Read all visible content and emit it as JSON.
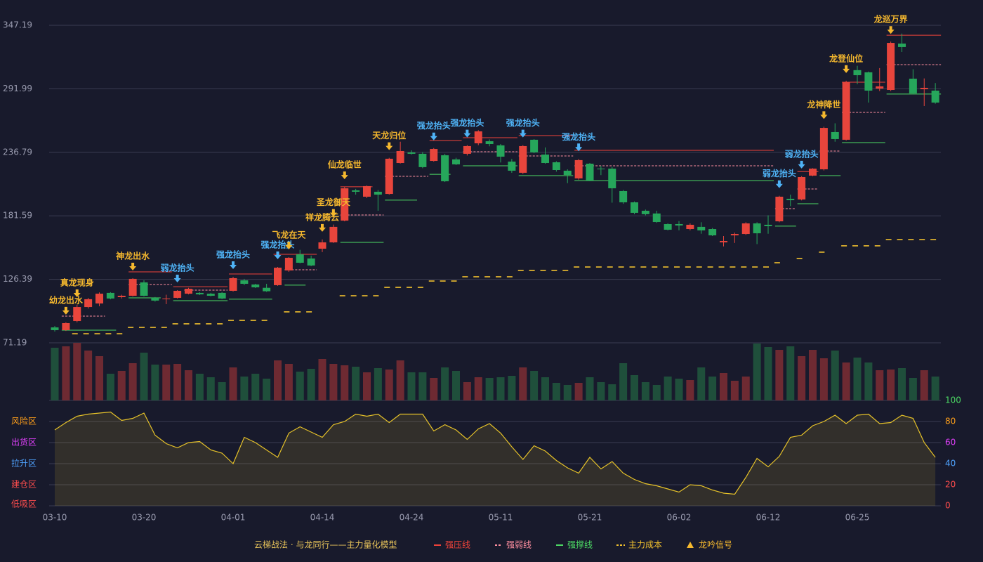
{
  "chart_data": {
    "type": "candlestick",
    "categories": [
      "03-10",
      null,
      null,
      null,
      null,
      null,
      null,
      null,
      "03-20",
      null,
      null,
      null,
      null,
      null,
      null,
      null,
      "04-01",
      null,
      null,
      null,
      null,
      null,
      null,
      null,
      "04-14",
      null,
      null,
      null,
      null,
      null,
      null,
      null,
      "04-24",
      null,
      null,
      null,
      null,
      null,
      null,
      null,
      "05-11",
      null,
      null,
      null,
      null,
      null,
      null,
      null,
      "05-21",
      null,
      null,
      null,
      null,
      null,
      null,
      null,
      "06-02",
      null,
      null,
      null,
      null,
      null,
      null,
      null,
      "06-12",
      null,
      null,
      null,
      null,
      null,
      null,
      null,
      "06-25",
      null,
      null,
      null,
      null,
      null,
      null,
      null
    ],
    "open": [
      84.6,
      82.2,
      90.1,
      102.3,
      105.4,
      114.6,
      110.9,
      112.1,
      123.7,
      110.3,
      109.1,
      110.3,
      113.9,
      114.6,
      113.9,
      114.6,
      116.4,
      125.5,
      121.9,
      119.0,
      121.3,
      134.1,
      148.1,
      144.5,
      153.0,
      158.5,
      177.4,
      203.7,
      198.2,
      202.5,
      200.6,
      227.5,
      236.7,
      235.5,
      229.3,
      234.2,
      230.6,
      235.5,
      244.6,
      246.4,
      242.8,
      228.7,
      219.0,
      247.7,
      234.8,
      228.1,
      220.8,
      214.1,
      226.9,
      222.6,
      222.6,
      203.1,
      193.3,
      186.0,
      183.6,
      174.4,
      174.4,
      170.1,
      172.0,
      170.1,
      158.5,
      164.6,
      165.8,
      175.0,
      173.8,
      176.8,
      196.4,
      195.8,
      216.5,
      222.0,
      254.4,
      247.7,
      308.2,
      306.3,
      292.2,
      291.0,
      331.3,
      300.8,
      291.6,
      290.4
    ],
    "high": [
      85.8,
      89.0,
      104.2,
      110.3,
      115.0,
      115.2,
      113.0,
      127.4,
      125.5,
      111.0,
      113.0,
      117.0,
      119.0,
      115.2,
      114.6,
      115.2,
      128.6,
      126.8,
      122.5,
      122.5,
      137.1,
      145.7,
      152.0,
      147.0,
      161.0,
      174.0,
      206.7,
      205.0,
      208.0,
      204.0,
      232.0,
      246.0,
      238.5,
      237.0,
      240.5,
      235.5,
      232.0,
      243.0,
      256.0,
      248.0,
      244.0,
      231.0,
      243.0,
      248.3,
      241.0,
      229.0,
      222.0,
      231.0,
      227.5,
      225.0,
      224.0,
      204.0,
      194.0,
      187.0,
      186.0,
      175.0,
      177.0,
      175.0,
      176.0,
      171.0,
      164.0,
      167.0,
      176.0,
      176.0,
      182.0,
      199.0,
      200.0,
      216.0,
      223.0,
      259.0,
      262.0,
      299.0,
      312.0,
      307.0,
      310.0,
      333.0,
      340.0,
      309.0,
      301.0,
      297.0
    ],
    "low": [
      81.0,
      81.5,
      89.0,
      101.0,
      103.0,
      109.0,
      109.7,
      111.5,
      111.5,
      107.0,
      104.8,
      109.7,
      113.3,
      112.7,
      111.5,
      109.1,
      115.8,
      121.3,
      118.8,
      115.5,
      120.7,
      132.9,
      140.2,
      137.8,
      150.0,
      158.0,
      176.8,
      200.0,
      197.0,
      186.0,
      200.0,
      227.0,
      234.8,
      223.0,
      228.7,
      211.0,
      225.7,
      234.0,
      243.0,
      242.0,
      228.0,
      219.0,
      218.0,
      236.0,
      226.9,
      220.0,
      210.0,
      213.0,
      211.6,
      217.0,
      193.0,
      192.0,
      183.0,
      182.0,
      175.5,
      168.9,
      169.0,
      168.9,
      166.0,
      164.0,
      155.0,
      158.0,
      165.0,
      157.0,
      166.0,
      176.0,
      190.0,
      195.0,
      216.0,
      221.0,
      246.0,
      247.0,
      296.0,
      280.0,
      290.0,
      290.0,
      324.0,
      287.0,
      277.0,
      279.0
    ],
    "close": [
      82.2,
      88.3,
      102.3,
      109.1,
      113.9,
      109.7,
      112.1,
      126.8,
      112.1,
      107.9,
      109.7,
      116.4,
      118.2,
      113.3,
      112.1,
      109.7,
      127.4,
      122.5,
      119.4,
      116.0,
      136.5,
      145.1,
      140.8,
      138.4,
      158.5,
      172.0,
      205.5,
      202.5,
      207.4,
      200.0,
      231.2,
      237.9,
      235.5,
      223.9,
      239.7,
      211.6,
      226.3,
      242.2,
      255.0,
      244.0,
      233.0,
      220.8,
      242.2,
      236.7,
      227.5,
      221.4,
      217.1,
      230.0,
      212.2,
      222.0,
      205.5,
      193.3,
      184.2,
      183.0,
      176.2,
      169.5,
      173.2,
      173.8,
      168.9,
      164.6,
      159.7,
      165.8,
      175.0,
      166.4,
      172.6,
      198.2,
      195.2,
      215.3,
      222.6,
      258.0,
      248.3,
      297.7,
      303.8,
      290.4,
      294.1,
      331.9,
      328.3,
      288.0,
      292.8,
      280.0
    ],
    "up_color": "#e8453c",
    "down_color": "#26a65b",
    "ylim": [
      71.19,
      347.19
    ],
    "yticks": [
      71.19,
      126.39,
      181.59,
      236.79,
      291.99,
      347.19
    ],
    "grid": true,
    "cost": {
      "name": "主力成本",
      "color": "#f2c12e",
      "values": [
        null,
        null,
        79.1,
        79.1,
        79.1,
        79.1,
        79.1,
        84.6,
        84.6,
        84.6,
        84.6,
        87.7,
        87.7,
        87.7,
        87.7,
        87.7,
        90.7,
        90.7,
        90.7,
        90.7,
        null,
        98.1,
        98.1,
        98.1,
        null,
        null,
        112.1,
        112.1,
        112.1,
        112.1,
        119.4,
        119.4,
        119.4,
        119.4,
        124.9,
        124.9,
        124.9,
        128.6,
        128.6,
        128.6,
        128.6,
        128.6,
        134.1,
        134.1,
        134.1,
        134.1,
        134.1,
        137.1,
        137.1,
        137.1,
        137.1,
        137.1,
        137.1,
        137.1,
        137.1,
        137.1,
        137.1,
        137.1,
        137.1,
        137.1,
        137.1,
        137.1,
        137.1,
        137.1,
        137.1,
        140.8,
        null,
        144.5,
        null,
        150.0,
        null,
        155.5,
        155.5,
        155.5,
        155.5,
        160.9,
        160.9,
        160.9,
        160.9,
        160.9
      ]
    },
    "level_styles": {
      "pressure": {
        "name": "强压线",
        "color": "#f0433a"
      },
      "weak": {
        "name": "强弱线",
        "color": "#ff8fa0",
        "dashed": true
      },
      "support": {
        "name": "强撑线",
        "color": "#4cd964"
      }
    },
    "levels": [
      {
        "kind": "pressure",
        "start": 7,
        "end": 10,
        "value": 132.9
      },
      {
        "kind": "pressure",
        "start": 11,
        "end": 15,
        "value": 120.0
      },
      {
        "kind": "pressure",
        "start": 16,
        "end": 19,
        "value": 131.0
      },
      {
        "kind": "pressure",
        "start": 20,
        "end": 23,
        "value": 148.1
      },
      {
        "kind": "pressure",
        "start": 26,
        "end": 28,
        "value": 206.8
      },
      {
        "kind": "pressure",
        "start": 34,
        "end": 36,
        "value": 247.0
      },
      {
        "kind": "pressure",
        "start": 37,
        "end": 41,
        "value": 249.5
      },
      {
        "kind": "pressure",
        "start": 42,
        "end": 46,
        "value": 251.3
      },
      {
        "kind": "pressure",
        "start": 47,
        "end": 64,
        "value": 238.5
      },
      {
        "kind": "pressure",
        "start": 67,
        "end": 68,
        "value": 220.0
      },
      {
        "kind": "pressure",
        "start": 71,
        "end": 74,
        "value": 297.7
      },
      {
        "kind": "pressure",
        "start": 75,
        "end": 79,
        "value": 338.6
      },
      {
        "kind": "weak",
        "start": 1,
        "end": 4,
        "value": 94.4
      },
      {
        "kind": "weak",
        "start": 7,
        "end": 10,
        "value": 121.9
      },
      {
        "kind": "weak",
        "start": 12,
        "end": 15,
        "value": 117.0
      },
      {
        "kind": "weak",
        "start": 21,
        "end": 23,
        "value": 134.7
      },
      {
        "kind": "weak",
        "start": 26,
        "end": 29,
        "value": 182.3
      },
      {
        "kind": "weak",
        "start": 30,
        "end": 33,
        "value": 215.9
      },
      {
        "kind": "weak",
        "start": 37,
        "end": 41,
        "value": 237.3
      },
      {
        "kind": "weak",
        "start": 42,
        "end": 46,
        "value": 233.6
      },
      {
        "kind": "weak",
        "start": 47,
        "end": 64,
        "value": 225.1
      },
      {
        "kind": "weak",
        "start": 65,
        "end": 66,
        "value": 187.8
      },
      {
        "kind": "weak",
        "start": 67,
        "end": 68,
        "value": 204.9
      },
      {
        "kind": "weak",
        "start": 69,
        "end": 70,
        "value": 237.9
      },
      {
        "kind": "weak",
        "start": 71,
        "end": 74,
        "value": 271.5
      },
      {
        "kind": "weak",
        "start": 75,
        "end": 79,
        "value": 313.0
      },
      {
        "kind": "support",
        "start": 1,
        "end": 5,
        "value": 82.2
      },
      {
        "kind": "support",
        "start": 7,
        "end": 9,
        "value": 110.3
      },
      {
        "kind": "support",
        "start": 11,
        "end": 15,
        "value": 107.8
      },
      {
        "kind": "support",
        "start": 16,
        "end": 19,
        "value": 109.1
      },
      {
        "kind": "support",
        "start": 21,
        "end": 22,
        "value": 121.3
      },
      {
        "kind": "support",
        "start": 26,
        "end": 29,
        "value": 158.5
      },
      {
        "kind": "support",
        "start": 30,
        "end": 32,
        "value": 195.2
      },
      {
        "kind": "support",
        "start": 34,
        "end": 35,
        "value": 217.7
      },
      {
        "kind": "support",
        "start": 37,
        "end": 41,
        "value": 225.1
      },
      {
        "kind": "support",
        "start": 42,
        "end": 46,
        "value": 216.5
      },
      {
        "kind": "support",
        "start": 47,
        "end": 64,
        "value": 212.2
      },
      {
        "kind": "support",
        "start": 65,
        "end": 66,
        "value": 172.6
      },
      {
        "kind": "support",
        "start": 67,
        "end": 68,
        "value": 192.1
      },
      {
        "kind": "support",
        "start": 69,
        "end": 70,
        "value": 216.5
      },
      {
        "kind": "support",
        "start": 71,
        "end": 74,
        "value": 245.2
      },
      {
        "kind": "support",
        "start": 75,
        "end": 79,
        "value": 287.4
      }
    ],
    "signal_name": "龙吟信号",
    "signal_colors": {
      "gold": "#f5b82e",
      "blue": "#4fb3f6"
    },
    "signals": [
      {
        "label": "幼龙出水",
        "index": 1,
        "kind": "gold"
      },
      {
        "label": "真龙现身",
        "index": 2,
        "kind": "gold"
      },
      {
        "label": "神龙出水",
        "index": 7,
        "kind": "gold"
      },
      {
        "label": "弱龙抬头",
        "index": 11,
        "kind": "blue"
      },
      {
        "label": "强龙抬头",
        "index": 16,
        "kind": "blue"
      },
      {
        "label": "强龙抬头",
        "index": 20,
        "kind": "blue"
      },
      {
        "label": "飞龙在天",
        "index": 21,
        "kind": "gold"
      },
      {
        "label": "祥龙腾云",
        "index": 24,
        "kind": "gold"
      },
      {
        "label": "圣龙御天",
        "index": 25,
        "kind": "gold"
      },
      {
        "label": "仙龙临世",
        "index": 26,
        "kind": "gold"
      },
      {
        "label": "天龙归位",
        "index": 30,
        "kind": "gold"
      },
      {
        "label": "强龙抬头",
        "index": 34,
        "kind": "blue"
      },
      {
        "label": "强龙抬头",
        "index": 37,
        "kind": "blue"
      },
      {
        "label": "强龙抬头",
        "index": 42,
        "kind": "blue"
      },
      {
        "label": "强龙抬头",
        "index": 47,
        "kind": "blue"
      },
      {
        "label": "弱龙抬头",
        "index": 65,
        "kind": "blue"
      },
      {
        "label": "弱龙抬头",
        "index": 67,
        "kind": "blue"
      },
      {
        "label": "龙神降世",
        "index": 69,
        "kind": "gold"
      },
      {
        "label": "龙登仙位",
        "index": 71,
        "kind": "gold"
      },
      {
        "label": "龙巡万界",
        "index": 75,
        "kind": "gold"
      }
    ],
    "volume": {
      "up_color": "#6e2a32",
      "down_color": "#1f4f3b",
      "values": [
        75,
        77,
        82,
        71,
        63,
        38,
        42,
        53,
        68,
        51,
        51,
        52,
        43,
        38,
        33,
        26,
        47,
        34,
        38,
        31,
        57,
        52,
        41,
        45,
        59,
        52,
        50,
        48,
        40,
        46,
        44,
        57,
        40,
        40,
        32,
        47,
        42,
        26,
        33,
        32,
        33,
        35,
        47,
        42,
        33,
        25,
        22,
        25,
        33,
        26,
        23,
        53,
        36,
        26,
        22,
        34,
        31,
        29,
        47,
        34,
        39,
        28,
        34,
        81,
        76,
        72,
        77,
        63,
        72,
        60,
        71,
        54,
        61,
        54,
        43,
        44,
        46,
        32,
        43,
        34
      ]
    },
    "oscillator": {
      "type": "line",
      "color": "#e6c229",
      "values": [
        72,
        79,
        85,
        87,
        88,
        89,
        81,
        83,
        88,
        67,
        59,
        55,
        60,
        61,
        53,
        50,
        40,
        65,
        60,
        53,
        46,
        69,
        75,
        70,
        65,
        77,
        80,
        87,
        85,
        87,
        79,
        87,
        87,
        87,
        71,
        77,
        72,
        63,
        73,
        78,
        69,
        56,
        44,
        57,
        52,
        43,
        36,
        31,
        46,
        35,
        42,
        31,
        25,
        21,
        19,
        16,
        13,
        20,
        19,
        15,
        12,
        11,
        27,
        45,
        37,
        47,
        65,
        67,
        76,
        80,
        86,
        78,
        86,
        87,
        78,
        79,
        86,
        83,
        60,
        46
      ],
      "y2lim": [
        0,
        100
      ],
      "y2ticks": [
        0,
        20,
        40,
        60,
        80,
        100
      ],
      "y2tick_colors": [
        "#ff4d4d",
        "#ff4d4d",
        "#4fa3ff",
        "#e040fb",
        "#ff9f1a",
        "#4cd964"
      ],
      "zones": [
        {
          "label": "风险区",
          "value": 80,
          "color": "#ff9f1a"
        },
        {
          "label": "出货区",
          "value": 60,
          "color": "#e040fb"
        },
        {
          "label": "拉升区",
          "value": 40,
          "color": "#4fa3ff"
        },
        {
          "label": "建仓区",
          "value": 20,
          "color": "#ff4d4d"
        },
        {
          "label": "低吸区",
          "value": 0,
          "color": "#ff4d4d"
        }
      ]
    },
    "legend_title": "云梯战法 · 与龙同行——主力量化模型"
  }
}
